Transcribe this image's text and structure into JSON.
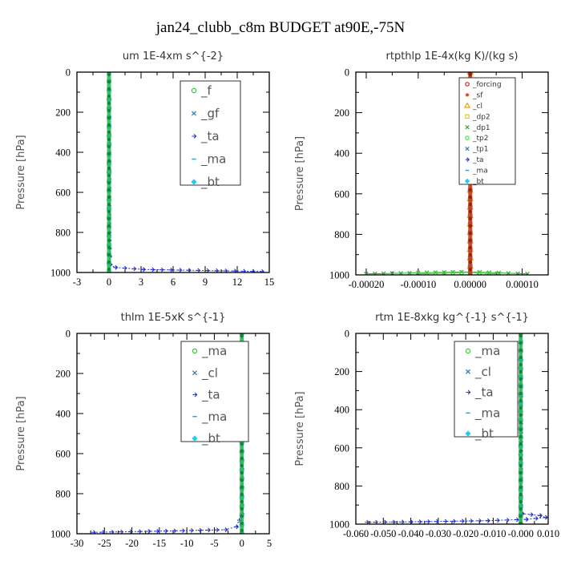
{
  "figure": {
    "title": "jan24_clubb_c8m  BUDGET at90E,-75N"
  },
  "chart_data": [
    {
      "type": "line",
      "title": "um  1E-4xm s^{-2}",
      "ylabel": "Pressure [hPa]",
      "xlim": [
        -3,
        15
      ],
      "ylim": [
        1000,
        0
      ],
      "xticks": [
        "-3",
        "0",
        "3",
        "6",
        "9",
        "12",
        "15"
      ],
      "yticks": [
        "0",
        "200",
        "400",
        "600",
        "800",
        "1000"
      ],
      "legend_size": "large",
      "series": [
        {
          "name": "_f",
          "color": "#33cc33",
          "marker": "circle",
          "x": [
            0,
            0,
            0
          ],
          "y": [
            0,
            500,
            1000
          ]
        },
        {
          "name": "_gf",
          "color": "#3377aa",
          "marker": "cross",
          "x": [
            0,
            0,
            0
          ],
          "y": [
            0,
            500,
            1000
          ]
        },
        {
          "name": "_ta",
          "color": "#2233cc",
          "marker": "arrow",
          "x": [
            0,
            0,
            0.1,
            0.6,
            3.2,
            14.3
          ],
          "y": [
            0,
            800,
            960,
            975,
            985,
            995
          ]
        },
        {
          "name": "_ma",
          "color": "#2299dd",
          "marker": "dash",
          "x": [
            0,
            0,
            0
          ],
          "y": [
            0,
            500,
            1000
          ]
        },
        {
          "name": "_bt",
          "color": "#22ccee",
          "marker": "diamond",
          "x": [
            0,
            0,
            0
          ],
          "y": [
            0,
            500,
            1000
          ]
        }
      ]
    },
    {
      "type": "line",
      "title": "rtpthlp  1E-4x(kg K)/(kg s)",
      "ylabel": "Pressure [hPa]",
      "xlim": [
        -0.00022,
        0.00015
      ],
      "ylim": [
        1000,
        0
      ],
      "xticks": [
        "-0.00020",
        "-0.00010",
        "0.00000",
        "0.00010"
      ],
      "yticks": [
        "0",
        "200",
        "400",
        "600",
        "800",
        "1000"
      ],
      "legend_size": "small",
      "series": [
        {
          "name": "_forcing",
          "color": "#cc2222",
          "marker": "circle",
          "x": [
            0,
            0,
            0
          ],
          "y": [
            0,
            500,
            1000
          ]
        },
        {
          "name": "_sf",
          "color": "#ee4422",
          "marker": "star",
          "x": [
            0,
            0,
            0
          ],
          "y": [
            0,
            500,
            1000
          ]
        },
        {
          "name": "_cl",
          "color": "#ee9900",
          "marker": "tri",
          "x": [
            0,
            0,
            0
          ],
          "y": [
            0,
            500,
            1000
          ]
        },
        {
          "name": "_dp2",
          "color": "#ddcc00",
          "marker": "square",
          "x": [
            0,
            0,
            0
          ],
          "y": [
            0,
            500,
            1000
          ]
        },
        {
          "name": "_dp1",
          "color": "#33aa33",
          "marker": "cross",
          "x": [
            -0.0002,
            0,
            0.00011
          ],
          "y": [
            995,
            985,
            995
          ]
        },
        {
          "name": "_tp2",
          "color": "#55dd55",
          "marker": "circle",
          "x": [
            -0.0001,
            0,
            5e-05
          ],
          "y": [
            995,
            988,
            995
          ]
        },
        {
          "name": "_tp1",
          "color": "#3377aa",
          "marker": "cross",
          "x": [
            0,
            0,
            0
          ],
          "y": [
            0,
            500,
            1000
          ]
        },
        {
          "name": "_ta",
          "color": "#2233cc",
          "marker": "arrow",
          "x": [
            0,
            0,
            0
          ],
          "y": [
            0,
            500,
            1000
          ]
        },
        {
          "name": "_ma",
          "color": "#2299dd",
          "marker": "dash",
          "x": [
            0,
            0,
            0
          ],
          "y": [
            0,
            500,
            1000
          ]
        },
        {
          "name": "_bt",
          "color": "#22ccee",
          "marker": "diamond",
          "x": [
            0,
            0,
            0
          ],
          "y": [
            0,
            500,
            1000
          ]
        }
      ]
    },
    {
      "type": "line",
      "title": "thlm  1E-5xK s^{-1}",
      "ylabel": "Pressure [hPa]",
      "xlim": [
        -30,
        5
      ],
      "ylim": [
        1000,
        0
      ],
      "xticks": [
        "-30",
        "-25",
        "-20",
        "-15",
        "-10",
        "-5",
        "0",
        "5"
      ],
      "yticks": [
        "0",
        "200",
        "400",
        "600",
        "800",
        "1000"
      ],
      "legend_size": "large",
      "series": [
        {
          "name": "_ma",
          "color": "#33cc33",
          "marker": "circle",
          "x": [
            0,
            0,
            0
          ],
          "y": [
            0,
            500,
            1000
          ]
        },
        {
          "name": "_cl",
          "color": "#3377aa",
          "marker": "cross",
          "x": [
            0,
            0,
            0
          ],
          "y": [
            0,
            500,
            1000
          ]
        },
        {
          "name": "_ta",
          "color": "#2233cc",
          "marker": "arrow",
          "x": [
            0,
            0,
            -1,
            -3,
            -17,
            -27
          ],
          "y": [
            0,
            900,
            965,
            980,
            988,
            993
          ]
        },
        {
          "name": "_ma",
          "color": "#2299dd",
          "marker": "dash",
          "x": [
            0,
            0,
            0
          ],
          "y": [
            0,
            500,
            1000
          ]
        },
        {
          "name": "_bt",
          "color": "#22ccee",
          "marker": "diamond",
          "x": [
            0,
            0,
            0
          ],
          "y": [
            0,
            500,
            1000
          ]
        }
      ]
    },
    {
      "type": "line",
      "title": "rtm  1E-8xkg kg^{-1} s^{-1}",
      "ylabel": "Pressure [hPa]",
      "xlim": [
        -0.06,
        0.01
      ],
      "ylim": [
        1000,
        0
      ],
      "xticks": [
        "-0.060",
        "-0.050",
        "-0.040",
        "-0.030",
        "-0.020",
        "-0.010",
        "-0.000",
        "0.010"
      ],
      "yticks": [
        "0",
        "200",
        "400",
        "600",
        "800",
        "1000"
      ],
      "legend_size": "large",
      "series": [
        {
          "name": "_ma",
          "color": "#33cc33",
          "marker": "circle",
          "x": [
            0,
            0,
            0
          ],
          "y": [
            0,
            500,
            1000
          ]
        },
        {
          "name": "_cl",
          "color": "#3377aa",
          "marker": "cross",
          "x": [
            0,
            0,
            0
          ],
          "y": [
            0,
            500,
            1000
          ]
        },
        {
          "name": "_ta",
          "color": "#2233cc",
          "marker": "arrow",
          "x": [
            0,
            0,
            0.0005,
            0.007,
            0.009,
            0.002,
            -0.012,
            -0.04,
            -0.056
          ],
          "y": [
            0,
            900,
            945,
            955,
            965,
            975,
            982,
            988,
            990
          ]
        },
        {
          "name": "_ma",
          "color": "#2299dd",
          "marker": "dash",
          "x": [
            0,
            0,
            0
          ],
          "y": [
            0,
            500,
            1000
          ]
        },
        {
          "name": "_bt",
          "color": "#22ccee",
          "marker": "diamond",
          "x": [
            0,
            0,
            0
          ],
          "y": [
            0,
            500,
            1000
          ]
        }
      ]
    }
  ]
}
